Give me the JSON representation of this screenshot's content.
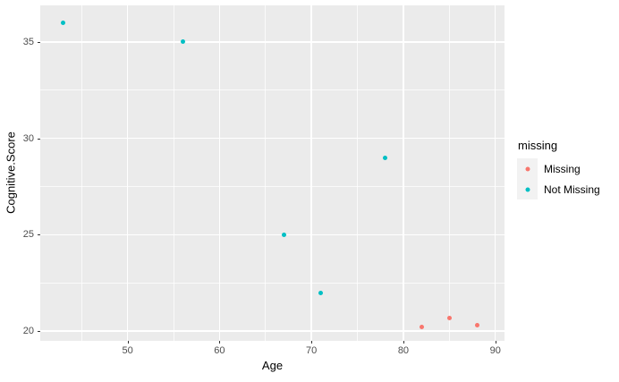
{
  "chart_data": {
    "type": "scatter",
    "title": "",
    "xlabel": "Age",
    "ylabel": "Cognitive.Score",
    "xlim": [
      40.5,
      91
    ],
    "ylim": [
      19.5,
      36.9
    ],
    "x_ticks": [
      50,
      60,
      70,
      80,
      90
    ],
    "y_ticks": [
      20,
      25,
      30,
      35
    ],
    "grid": "white major and minor gridlines on gray panel",
    "legend": {
      "title": "missing",
      "position": "right"
    },
    "series": [
      {
        "name": "Missing",
        "color": "#F8766D",
        "points": [
          {
            "x": 82,
            "y": 20.2
          },
          {
            "x": 85,
            "y": 20.7
          },
          {
            "x": 88,
            "y": 20.3
          }
        ]
      },
      {
        "name": "Not Missing",
        "color": "#00BFC4",
        "points": [
          {
            "x": 43,
            "y": 36
          },
          {
            "x": 56,
            "y": 35
          },
          {
            "x": 67,
            "y": 25
          },
          {
            "x": 71,
            "y": 22
          },
          {
            "x": 78,
            "y": 29
          }
        ]
      }
    ]
  },
  "style": {
    "page_bg": "#FFFFFF",
    "panel_bg": "#EBEBEB",
    "grid_color": "#FFFFFF",
    "tick_label_color": "#4D4D4D",
    "axis_title_color": "#000000",
    "legend_key_bg": "#F2F2F2",
    "missing_color": "#F8766D",
    "not_missing_color": "#00BFC4"
  }
}
